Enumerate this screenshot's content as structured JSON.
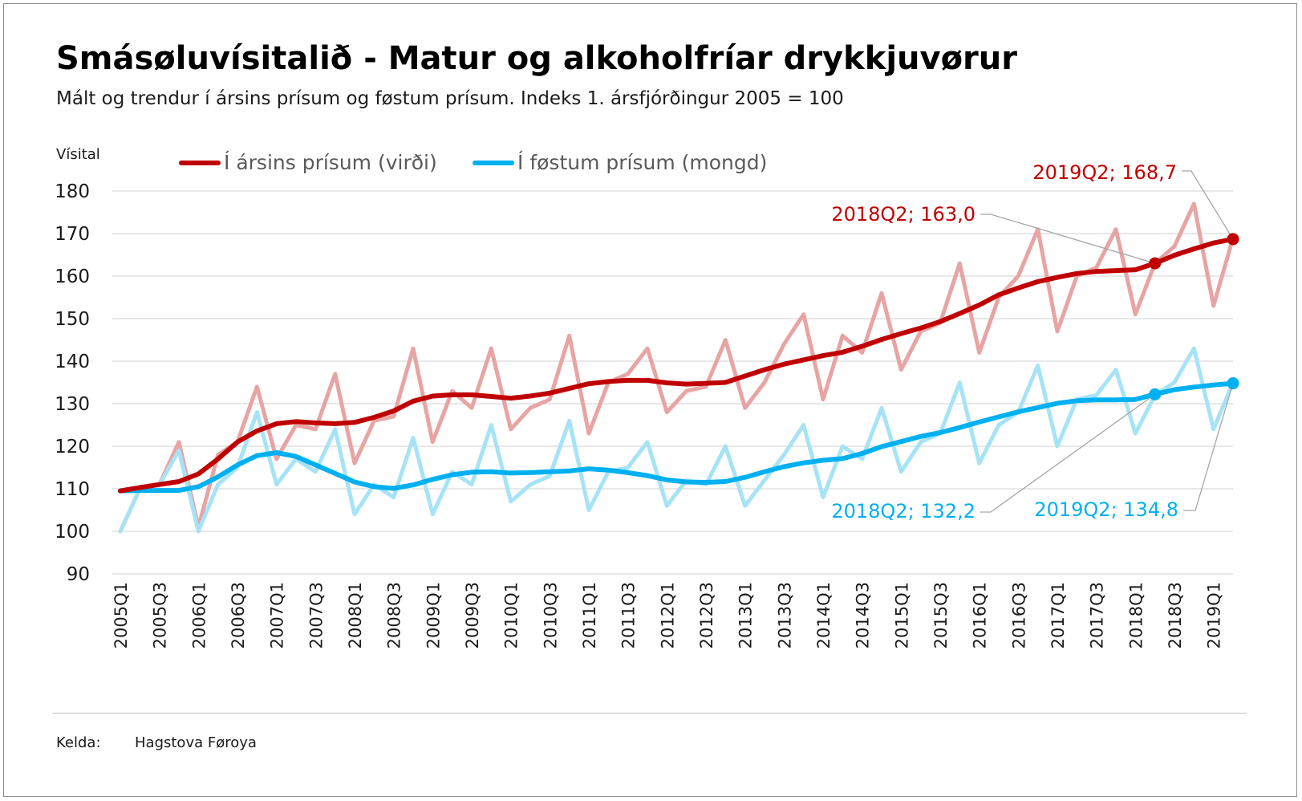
{
  "title": "Smásøluvísitalið - Matur og alkoholfríar drykkjuvørur",
  "subtitle": "Mált og trendur í ársins prísum og føstum prísum. Indeks 1. ársfjórðingur 2005 = 100",
  "source": {
    "label": "Kelda:",
    "value": "Hagstova Føroya"
  },
  "colors": {
    "red": "#c00000",
    "red_light": "#e8a4a4",
    "blue": "#00b0f0",
    "blue_light": "#a6e3f7",
    "grid": "#d9d9d9"
  },
  "chart_data": {
    "type": "line",
    "ylabel": "Vísital",
    "ylim": [
      90,
      180
    ],
    "yticks": [
      90,
      100,
      110,
      120,
      130,
      140,
      150,
      160,
      170,
      180
    ],
    "grid": true,
    "legend_position": "top",
    "x": [
      "2005Q1",
      "2005Q2",
      "2005Q3",
      "2005Q4",
      "2006Q1",
      "2006Q2",
      "2006Q3",
      "2006Q4",
      "2007Q1",
      "2007Q2",
      "2007Q3",
      "2007Q4",
      "2008Q1",
      "2008Q2",
      "2008Q3",
      "2008Q4",
      "2009Q1",
      "2009Q2",
      "2009Q3",
      "2009Q4",
      "2010Q1",
      "2010Q2",
      "2010Q3",
      "2010Q4",
      "2011Q1",
      "2011Q2",
      "2011Q3",
      "2011Q4",
      "2012Q1",
      "2012Q2",
      "2012Q3",
      "2012Q4",
      "2013Q1",
      "2013Q2",
      "2013Q3",
      "2013Q4",
      "2014Q1",
      "2014Q2",
      "2014Q3",
      "2014Q4",
      "2015Q1",
      "2015Q2",
      "2015Q3",
      "2015Q4",
      "2016Q1",
      "2016Q2",
      "2016Q3",
      "2016Q4",
      "2017Q1",
      "2017Q2",
      "2017Q3",
      "2017Q4",
      "2018Q1",
      "2018Q2",
      "2018Q3",
      "2018Q4",
      "2019Q1",
      "2019Q2"
    ],
    "xtick_labels": [
      "2005Q1",
      "2005Q3",
      "2006Q1",
      "2006Q3",
      "2007Q1",
      "2007Q3",
      "2008Q1",
      "2008Q3",
      "2009Q1",
      "2009Q3",
      "2010Q1",
      "2010Q3",
      "2011Q1",
      "2011Q3",
      "2012Q1",
      "2012Q3",
      "2013Q1",
      "2013Q3",
      "2014Q1",
      "2014Q3",
      "2015Q1",
      "2015Q3",
      "2016Q1",
      "2016Q3",
      "2017Q1",
      "2017Q3",
      "2018Q1",
      "2018Q3",
      "2019Q1"
    ],
    "series": [
      {
        "name": "Í ársins prísum (virði)",
        "kind": "raw",
        "color": "#e8a4a4",
        "values": [
          100,
          110,
          111,
          121,
          101,
          118,
          121,
          134,
          117,
          125,
          124,
          137,
          116,
          126,
          127,
          143,
          121,
          133,
          129,
          143,
          124,
          129,
          131,
          146,
          123,
          135,
          137,
          143,
          128,
          133,
          134,
          145,
          129,
          135,
          144,
          151,
          131,
          146,
          142,
          156,
          138,
          147,
          149,
          163,
          142,
          155,
          160,
          171,
          147,
          160,
          162,
          171,
          151,
          163,
          167,
          177,
          153,
          169
        ]
      },
      {
        "name": "Í ársins prísum (virði)",
        "kind": "trend",
        "color": "#c00000",
        "values": [
          109.5,
          110.3,
          111,
          111.7,
          113.5,
          117,
          121,
          123.6,
          125.3,
          125.8,
          125.5,
          125.3,
          125.6,
          126.8,
          128.3,
          130.6,
          131.8,
          132.1,
          132.1,
          131.7,
          131.3,
          131.8,
          132.5,
          133.6,
          134.7,
          135.2,
          135.5,
          135.5,
          134.9,
          134.6,
          134.8,
          135,
          136.5,
          138,
          139.3,
          140.3,
          141.3,
          142.1,
          143.5,
          145.1,
          146.5,
          147.8,
          149.3,
          151.2,
          153.2,
          155.6,
          157.2,
          158.7,
          159.7,
          160.6,
          161.1,
          161.3,
          161.5,
          163,
          164.9,
          166.4,
          167.8,
          168.7
        ]
      },
      {
        "name": "Í føstum prísum (mongd)",
        "kind": "raw",
        "color": "#a6e3f7",
        "values": [
          100,
          110,
          111,
          119,
          100,
          111,
          115,
          128,
          111,
          117,
          114,
          124,
          104,
          111,
          108,
          122,
          104,
          114,
          111,
          125,
          107,
          111,
          113,
          126,
          105,
          114,
          115,
          121,
          106,
          112,
          111,
          120,
          106,
          112,
          118,
          125,
          108,
          120,
          117,
          129,
          114,
          121,
          123,
          135,
          116,
          125,
          128,
          139,
          120,
          131,
          132,
          138,
          123,
          132,
          135,
          143,
          124,
          135
        ]
      },
      {
        "name": "Í føstum prísum (mongd)",
        "kind": "trend",
        "color": "#00b0f0",
        "values": [
          109.5,
          109.6,
          109.6,
          109.6,
          110.5,
          112.8,
          115.6,
          117.8,
          118.5,
          117.6,
          115.6,
          113.6,
          111.6,
          110.5,
          110.1,
          110.9,
          112.2,
          113.3,
          113.9,
          114,
          113.7,
          113.8,
          114,
          114.2,
          114.7,
          114.4,
          113.8,
          113.1,
          112.1,
          111.6,
          111.5,
          111.7,
          112.7,
          114,
          115.2,
          116.1,
          116.7,
          117.1,
          118.3,
          119.9,
          121.1,
          122.3,
          123.2,
          124.4,
          125.7,
          126.9,
          128.1,
          129.1,
          130.1,
          130.7,
          130.9,
          130.9,
          131,
          132.2,
          133.3,
          133.9,
          134.4,
          134.8
        ]
      }
    ],
    "annotations": [
      {
        "text": "2019Q2; 168,7",
        "x": "2019Q2",
        "y": 168.7,
        "color": "#c00000"
      },
      {
        "text": "2018Q2; 163,0",
        "x": "2018Q2",
        "y": 163.0,
        "color": "#c00000"
      },
      {
        "text": "2018Q2; 132,2",
        "x": "2018Q2",
        "y": 132.2,
        "color": "#00b0f0"
      },
      {
        "text": "2019Q2; 134,8",
        "x": "2019Q2",
        "y": 134.8,
        "color": "#00b0f0"
      }
    ]
  }
}
